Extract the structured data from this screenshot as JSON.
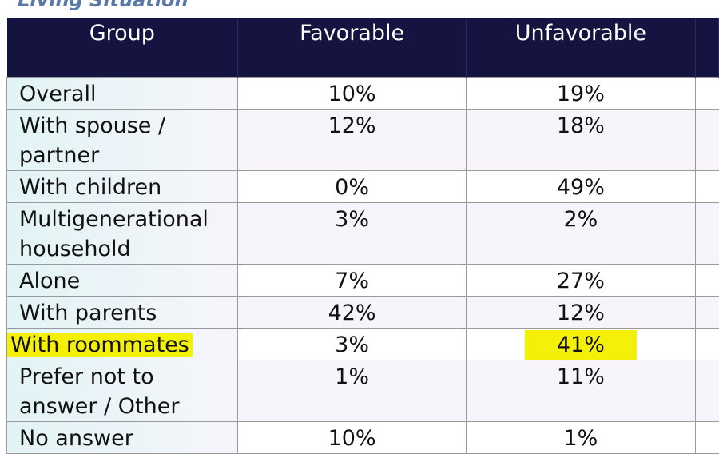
{
  "title": "Living Situation",
  "chart_data": {
    "type": "table",
    "title": "Living Situation",
    "columns": [
      "Group",
      "Favorable",
      "Unfavorable"
    ],
    "rows": [
      {
        "group": "Overall",
        "favorable": "10%",
        "unfavorable": "19%"
      },
      {
        "group": "With spouse / partner",
        "favorable": "12%",
        "unfavorable": "18%"
      },
      {
        "group": "With children",
        "favorable": "0%",
        "unfavorable": "49%"
      },
      {
        "group": "Multigenerational household",
        "favorable": "3%",
        "unfavorable": "2%"
      },
      {
        "group": "Alone",
        "favorable": "7%",
        "unfavorable": "27%"
      },
      {
        "group": "With parents",
        "favorable": "42%",
        "unfavorable": "12%"
      },
      {
        "group": "With roommates",
        "favorable": "3%",
        "unfavorable": "41%"
      },
      {
        "group": "Prefer not to answer / Other",
        "favorable": "1%",
        "unfavorable": "11%"
      },
      {
        "group": "No answer",
        "favorable": "10%",
        "unfavorable": "1%"
      }
    ],
    "highlight": {
      "row": "With roommates",
      "cells": [
        "group",
        "unfavorable"
      ],
      "color": "#f5f008"
    }
  }
}
